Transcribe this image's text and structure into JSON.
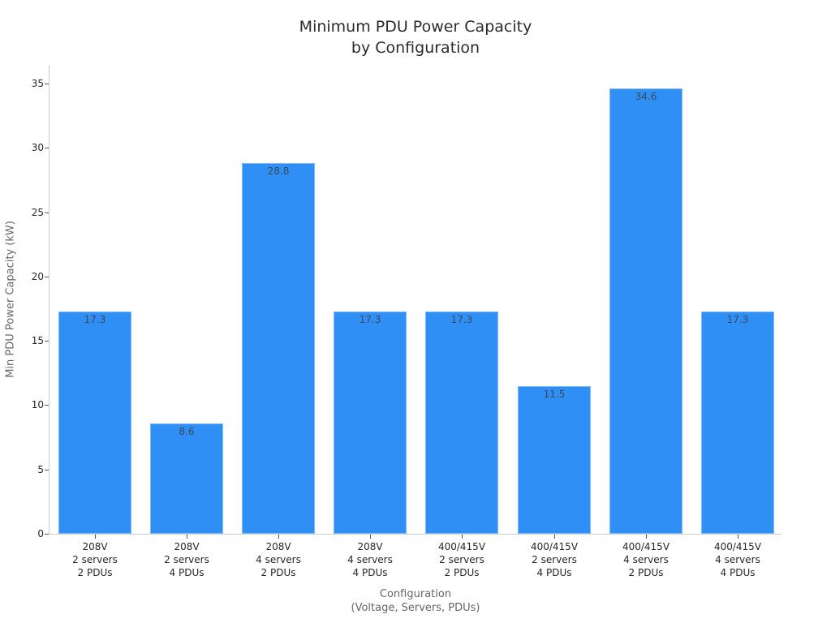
{
  "chart_data": {
    "type": "bar",
    "title": "Minimum PDU Power Capacity\nby Configuration",
    "title_lines": [
      "Minimum PDU Power Capacity",
      "by Configuration"
    ],
    "xlabel": "Configuration\n(Voltage, Servers, PDUs)",
    "xlabel_lines": [
      "Configuration",
      "(Voltage, Servers, PDUs)"
    ],
    "ylabel": "Min PDU Power Capacity (kW)",
    "ylim": [
      0,
      36.5
    ],
    "yticks": [
      0,
      5,
      10,
      15,
      20,
      25,
      30,
      35
    ],
    "grid": false,
    "legend": null,
    "bar_color": "#2f8ff5",
    "categories": [
      "208V\n2 servers\n2 PDUs",
      "208V\n2 servers\n4 PDUs",
      "208V\n4 servers\n2 PDUs",
      "208V\n4 servers\n4 PDUs",
      "400/415V\n2 servers\n2 PDUs",
      "400/415V\n2 servers\n4 PDUs",
      "400/415V\n4 servers\n2 PDUs",
      "400/415V\n4 servers\n4 PDUs"
    ],
    "category_lines": [
      [
        "208V",
        "2 servers",
        "2 PDUs"
      ],
      [
        "208V",
        "2 servers",
        "4 PDUs"
      ],
      [
        "208V",
        "4 servers",
        "2 PDUs"
      ],
      [
        "208V",
        "4 servers",
        "4 PDUs"
      ],
      [
        "400/415V",
        "2 servers",
        "2 PDUs"
      ],
      [
        "400/415V",
        "2 servers",
        "4 PDUs"
      ],
      [
        "400/415V",
        "4 servers",
        "2 PDUs"
      ],
      [
        "400/415V",
        "4 servers",
        "4 PDUs"
      ]
    ],
    "values": [
      17.3,
      8.6,
      28.8,
      17.3,
      17.3,
      11.5,
      34.6,
      17.3
    ],
    "data_labels": [
      "17.3",
      "8.6",
      "28.8",
      "17.3",
      "17.3",
      "11.5",
      "34.6",
      "17.3"
    ]
  }
}
